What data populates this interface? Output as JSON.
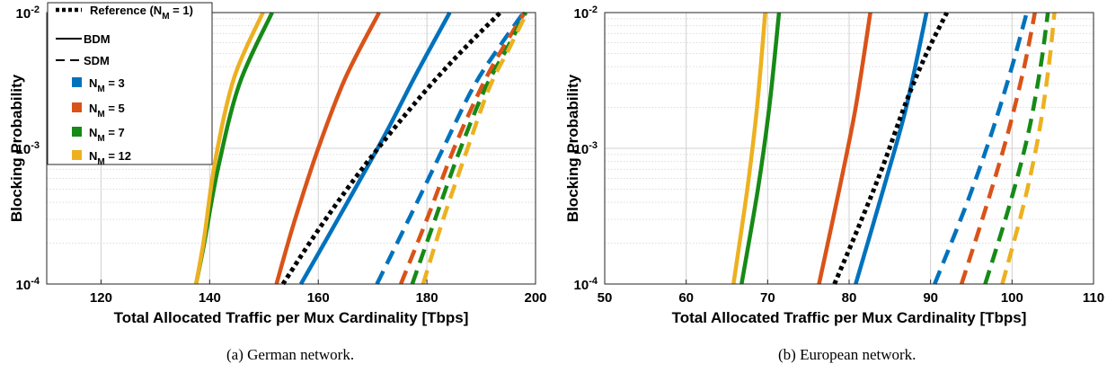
{
  "chart_data": [
    {
      "type": "line",
      "caption": "(a) German network.",
      "xlabel": "Total Allocated Traffic per Mux Cardinality [Tbps]",
      "ylabel": "Blocking Probability",
      "xlim": [
        110,
        200
      ],
      "xticks": [
        "120",
        "140",
        "160",
        "180",
        "200"
      ],
      "ylim": [
        0.0001,
        0.01
      ],
      "yscale": "log",
      "yticks": [
        {
          "base": "10",
          "exp": "-4"
        },
        {
          "base": "10",
          "exp": "-3"
        },
        {
          "base": "10",
          "exp": "-2"
        }
      ],
      "grid": true,
      "legend": {
        "placement": "top-left",
        "entries": [
          {
            "label": "Reference (N",
            "sub": "M",
            "suffix": " = 1)",
            "style": "dotted",
            "color": "#000000"
          },
          {
            "label": "BDM",
            "sub": "",
            "suffix": "",
            "style": "solid",
            "color": "#000000"
          },
          {
            "label": "SDM",
            "sub": "",
            "suffix": "",
            "style": "dashed",
            "color": "#000000"
          },
          {
            "label": "N",
            "sub": "M",
            "suffix": " = 3",
            "style": "patch",
            "color": "#0072BD"
          },
          {
            "label": "N",
            "sub": "M",
            "suffix": " = 5",
            "style": "patch",
            "color": "#D95319"
          },
          {
            "label": "N",
            "sub": "M",
            "suffix": " = 7",
            "style": "patch",
            "color": "#168A16"
          },
          {
            "label": "N",
            "sub": "M",
            "suffix": " = 12",
            "style": "patch",
            "color": "#EDB120"
          }
        ]
      },
      "series": [
        {
          "scheme": "BDM",
          "nm": 3,
          "color": "#0072BD",
          "style": "solid",
          "x": [
            156.8,
            164,
            172,
            178,
            184.2
          ],
          "y": [
            0.0001,
            0.00032,
            0.0012,
            0.0035,
            0.01
          ]
        },
        {
          "scheme": "BDM",
          "nm": 5,
          "color": "#D95319",
          "style": "solid",
          "x": [
            152.3,
            155.5,
            160,
            165,
            171.2
          ],
          "y": [
            0.0001,
            0.00028,
            0.001,
            0.0033,
            0.01
          ]
        },
        {
          "scheme": "BDM",
          "nm": 7,
          "color": "#168A16",
          "style": "solid",
          "x": [
            137.5,
            139,
            141.5,
            145.5,
            151.5
          ],
          "y": [
            0.0001,
            0.0002,
            0.0007,
            0.003,
            0.01
          ]
        },
        {
          "scheme": "BDM",
          "nm": 12,
          "color": "#EDB120",
          "style": "solid",
          "x": [
            137.5,
            139,
            141,
            144.5,
            149.8
          ],
          "y": [
            0.0001,
            0.00022,
            0.0008,
            0.0033,
            0.01
          ]
        },
        {
          "scheme": "Reference",
          "nm": 1,
          "color": "#000000",
          "style": "dotted",
          "x": [
            153.5,
            160,
            168,
            178,
            186,
            193.5
          ],
          "y": [
            0.0001,
            0.00025,
            0.0007,
            0.0022,
            0.005,
            0.01
          ]
        },
        {
          "scheme": "SDM",
          "nm": 3,
          "color": "#0072BD",
          "style": "dashed",
          "x": [
            170.8,
            177,
            183,
            188.5,
            193.2,
            197.8
          ],
          "y": [
            0.0001,
            0.00032,
            0.001,
            0.0028,
            0.0055,
            0.01
          ]
        },
        {
          "scheme": "SDM",
          "nm": 5,
          "color": "#D95319",
          "style": "dashed",
          "x": [
            175.2,
            180,
            185,
            190,
            194,
            198
          ],
          "y": [
            0.0001,
            0.0003,
            0.001,
            0.0028,
            0.0055,
            0.01
          ]
        },
        {
          "scheme": "SDM",
          "nm": 7,
          "color": "#168A16",
          "style": "dashed",
          "x": [
            177.3,
            181.5,
            186.2,
            190.8,
            194.8,
            198.2
          ],
          "y": [
            0.0001,
            0.0003,
            0.001,
            0.0028,
            0.0055,
            0.01
          ]
        },
        {
          "scheme": "SDM",
          "nm": 12,
          "color": "#EDB120",
          "style": "dashed",
          "x": [
            179.3,
            183,
            187.5,
            191.5,
            195.2,
            198.4
          ],
          "y": [
            0.0001,
            0.0003,
            0.001,
            0.0028,
            0.0055,
            0.01
          ]
        }
      ]
    },
    {
      "type": "line",
      "caption": "(b) European network.",
      "xlabel": "Total Allocated Traffic per Mux Cardinality [Tbps]",
      "ylabel": "Blocking Probability",
      "xlim": [
        50,
        110
      ],
      "xticks": [
        "50",
        "60",
        "70",
        "80",
        "90",
        "100",
        "110"
      ],
      "ylim": [
        0.0001,
        0.01
      ],
      "yscale": "log",
      "yticks": [
        {
          "base": "10",
          "exp": "-4"
        },
        {
          "base": "10",
          "exp": "-3"
        },
        {
          "base": "10",
          "exp": "-2"
        }
      ],
      "grid": true,
      "series": [
        {
          "scheme": "BDM",
          "nm": 3,
          "color": "#0072BD",
          "style": "solid",
          "x": [
            80.8,
            84.2,
            87,
            89.5
          ],
          "y": [
            0.0001,
            0.0005,
            0.002,
            0.01
          ]
        },
        {
          "scheme": "BDM",
          "nm": 5,
          "color": "#D95319",
          "style": "solid",
          "x": [
            76.3,
            78.8,
            80.8,
            82.6
          ],
          "y": [
            0.0001,
            0.0005,
            0.002,
            0.01
          ]
        },
        {
          "scheme": "BDM",
          "nm": 7,
          "color": "#168A16",
          "style": "solid",
          "x": [
            66.8,
            68.8,
            70.2,
            71.4
          ],
          "y": [
            0.0001,
            0.0005,
            0.002,
            0.01
          ]
        },
        {
          "scheme": "BDM",
          "nm": 12,
          "color": "#EDB120",
          "style": "solid",
          "x": [
            65.8,
            67.5,
            68.7,
            69.7
          ],
          "y": [
            0.0001,
            0.0005,
            0.002,
            0.01
          ]
        },
        {
          "scheme": "Reference",
          "nm": 1,
          "color": "#000000",
          "style": "dotted",
          "x": [
            78.2,
            81,
            84,
            87,
            89.5,
            92
          ],
          "y": [
            0.0001,
            0.00025,
            0.0007,
            0.0022,
            0.005,
            0.01
          ]
        },
        {
          "scheme": "SDM",
          "nm": 3,
          "color": "#0072BD",
          "style": "dashed",
          "x": [
            90.5,
            94.5,
            97.5,
            100,
            101.8
          ],
          "y": [
            0.0001,
            0.0004,
            0.0013,
            0.004,
            0.01
          ]
        },
        {
          "scheme": "SDM",
          "nm": 5,
          "color": "#D95319",
          "style": "dashed",
          "x": [
            93.8,
            97,
            99.5,
            101.5,
            102.8
          ],
          "y": [
            0.0001,
            0.0004,
            0.0013,
            0.004,
            0.01
          ]
        },
        {
          "scheme": "SDM",
          "nm": 7,
          "color": "#168A16",
          "style": "dashed",
          "x": [
            96.7,
            99.8,
            102,
            103.5,
            104.4
          ],
          "y": [
            0.0001,
            0.0004,
            0.0013,
            0.004,
            0.01
          ]
        },
        {
          "scheme": "SDM",
          "nm": 12,
          "color": "#EDB120",
          "style": "dashed",
          "x": [
            98.8,
            101.5,
            103.3,
            104.5,
            105.2
          ],
          "y": [
            0.0001,
            0.0004,
            0.0013,
            0.004,
            0.01
          ]
        }
      ]
    }
  ]
}
